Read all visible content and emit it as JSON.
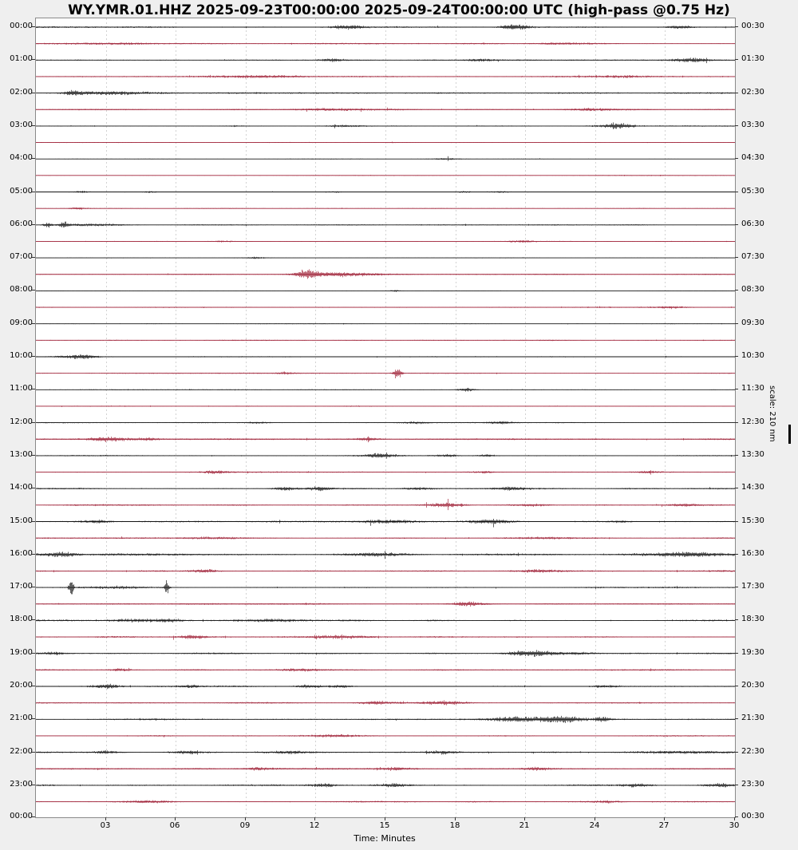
{
  "title": "WY.YMR.01.HHZ 2025-09-23T00:00:00 2025-09-24T00:00:00 UTC (high-pass @0.75 Hz)",
  "xlabel": "Time: Minutes",
  "scale_label": "scale: 210 nm",
  "colors": {
    "trace_black": "#141414",
    "trace_red": "#9f2238",
    "background": "#efefef",
    "plot_background": "#ffffff",
    "grid": "#d2d2d2",
    "frame": "#8a8a8a"
  },
  "x_ticks": [
    "03",
    "06",
    "09",
    "12",
    "15",
    "18",
    "21",
    "24",
    "27",
    "30"
  ],
  "left_labels": [
    "00:00",
    "01:00",
    "02:00",
    "03:00",
    "04:00",
    "05:00",
    "06:00",
    "07:00",
    "08:00",
    "09:00",
    "10:00",
    "11:00",
    "12:00",
    "13:00",
    "14:00",
    "15:00",
    "16:00",
    "17:00",
    "18:00",
    "19:00",
    "20:00",
    "21:00",
    "22:00",
    "23:00",
    "00:00"
  ],
  "right_labels": [
    "00:30",
    "01:30",
    "02:30",
    "03:30",
    "04:30",
    "05:30",
    "06:30",
    "07:30",
    "08:30",
    "09:30",
    "10:30",
    "11:30",
    "12:30",
    "13:30",
    "14:30",
    "15:30",
    "16:30",
    "17:30",
    "18:30",
    "19:30",
    "20:30",
    "21:30",
    "22:30",
    "23:30",
    "00:30"
  ],
  "chart_data": {
    "type": "line",
    "subtype": "helicorder-dayplot",
    "station": "WY.YMR.01.HHZ",
    "start": "2025-09-23T00:00:00",
    "end": "2025-09-24T00:00:00",
    "filter": "high-pass @0.75 Hz",
    "scale": "210 nm",
    "minutes_per_line": 30,
    "lines": 48,
    "xlim": [
      0,
      30
    ],
    "x_tick_minutes": [
      3,
      6,
      9,
      12,
      15,
      18,
      21,
      24,
      27,
      30
    ],
    "grid": "vertical dashed every 3 minutes",
    "line_color_alternation": [
      "black",
      "red"
    ],
    "events_format": "[minute, half_amplitude_px, sigma_minutes]",
    "rows": [
      {
        "start": "00:00",
        "color": "black",
        "noise": 1.1,
        "events": [
          [
            13.3,
            2.2,
            0.5
          ],
          [
            20.3,
            2.2,
            0.3
          ],
          [
            20.8,
            2.2,
            0.3
          ],
          [
            27.6,
            2.0,
            0.4
          ]
        ]
      },
      {
        "start": "00:30",
        "color": "red",
        "noise": 0.9,
        "events": [
          [
            3.5,
            1.4,
            1.2
          ],
          [
            22.6,
            1.2,
            0.8
          ]
        ]
      },
      {
        "start": "01:00",
        "color": "black",
        "noise": 0.8,
        "events": [
          [
            12.7,
            1.8,
            0.35
          ],
          [
            19.0,
            1.8,
            0.4
          ],
          [
            28.1,
            2.6,
            0.6
          ]
        ]
      },
      {
        "start": "01:30",
        "color": "red",
        "noise": 0.9,
        "events": [
          [
            9.8,
            1.3,
            1.5
          ],
          [
            24.8,
            1.4,
            1.2
          ]
        ]
      },
      {
        "start": "02:00",
        "color": "black",
        "noise": 1.1,
        "events": [
          [
            1.6,
            2.4,
            0.3
          ],
          [
            3.2,
            1.6,
            1.2
          ]
        ]
      },
      {
        "start": "02:30",
        "color": "red",
        "noise": 0.9,
        "events": [
          [
            12.8,
            1.2,
            1.5
          ],
          [
            23.8,
            1.3,
            0.8
          ]
        ]
      },
      {
        "start": "03:00",
        "color": "black",
        "noise": 0.8,
        "events": [
          [
            13.3,
            1.4,
            0.6
          ],
          [
            25.0,
            3.4,
            0.5
          ]
        ]
      },
      {
        "start": "03:30",
        "color": "red",
        "noise": 0.6,
        "events": []
      },
      {
        "start": "04:00",
        "color": "black",
        "noise": 0.5,
        "events": [
          [
            17.6,
            0.9,
            0.4
          ]
        ]
      },
      {
        "start": "04:30",
        "color": "red",
        "noise": 0.6,
        "events": []
      },
      {
        "start": "05:00",
        "color": "black",
        "noise": 0.5,
        "events": [
          [
            1.9,
            1.1,
            0.25
          ],
          [
            4.9,
            1.1,
            0.25
          ],
          [
            12.8,
            0.9,
            0.3
          ],
          [
            18.4,
            1.1,
            0.3
          ],
          [
            19.8,
            1.0,
            0.3
          ]
        ]
      },
      {
        "start": "05:30",
        "color": "red",
        "noise": 0.6,
        "events": [
          [
            1.8,
            1.4,
            0.25
          ]
        ]
      },
      {
        "start": "06:00",
        "color": "black",
        "noise": 0.7,
        "events": [
          [
            0.5,
            3.2,
            0.12
          ],
          [
            1.2,
            3.4,
            0.15
          ],
          [
            2.3,
            1.4,
            1.0
          ]
        ]
      },
      {
        "start": "06:30",
        "color": "red",
        "noise": 0.7,
        "events": [
          [
            8.0,
            1.2,
            0.35
          ],
          [
            20.8,
            1.4,
            0.35
          ]
        ]
      },
      {
        "start": "07:00",
        "color": "black",
        "noise": 0.5,
        "events": [
          [
            9.4,
            1.1,
            0.3
          ]
        ]
      },
      {
        "start": "07:30",
        "color": "red",
        "noise": 0.8,
        "events": [
          [
            11.6,
            5.5,
            0.3
          ],
          [
            12.4,
            2.4,
            0.9
          ],
          [
            13.8,
            1.6,
            0.9
          ]
        ]
      },
      {
        "start": "08:00",
        "color": "black",
        "noise": 0.5,
        "events": [
          [
            15.4,
            1.4,
            0.15
          ]
        ]
      },
      {
        "start": "08:30",
        "color": "red",
        "noise": 0.8,
        "events": [
          [
            27.2,
            1.4,
            0.5
          ]
        ]
      },
      {
        "start": "09:00",
        "color": "black",
        "noise": 0.5,
        "events": []
      },
      {
        "start": "09:30",
        "color": "red",
        "noise": 0.7,
        "events": []
      },
      {
        "start": "10:00",
        "color": "black",
        "noise": 0.7,
        "events": [
          [
            1.3,
            1.4,
            0.5
          ],
          [
            2.1,
            2.6,
            0.4
          ]
        ]
      },
      {
        "start": "10:30",
        "color": "red",
        "noise": 0.7,
        "events": [
          [
            10.7,
            1.4,
            0.25
          ],
          [
            15.5,
            7.5,
            0.12
          ]
        ]
      },
      {
        "start": "11:00",
        "color": "black",
        "noise": 0.6,
        "events": [
          [
            18.5,
            2.0,
            0.3
          ]
        ]
      },
      {
        "start": "11:30",
        "color": "red",
        "noise": 0.7,
        "events": []
      },
      {
        "start": "12:00",
        "color": "black",
        "noise": 0.8,
        "events": [
          [
            9.5,
            1.2,
            0.4
          ],
          [
            16.3,
            1.2,
            0.4
          ],
          [
            20.0,
            1.9,
            0.45
          ]
        ]
      },
      {
        "start": "12:30",
        "color": "red",
        "noise": 1.0,
        "events": [
          [
            3.1,
            2.6,
            0.6
          ],
          [
            4.8,
            1.7,
            0.3
          ],
          [
            14.2,
            1.9,
            0.35
          ]
        ]
      },
      {
        "start": "13:00",
        "color": "black",
        "noise": 0.8,
        "events": [
          [
            14.8,
            3.0,
            0.5
          ],
          [
            17.6,
            1.5,
            0.35
          ],
          [
            19.3,
            1.5,
            0.35
          ]
        ]
      },
      {
        "start": "13:30",
        "color": "red",
        "noise": 0.9,
        "events": [
          [
            7.7,
            1.9,
            0.35
          ],
          [
            19.2,
            1.4,
            0.45
          ],
          [
            26.2,
            1.4,
            0.45
          ]
        ]
      },
      {
        "start": "14:00",
        "color": "black",
        "noise": 1.0,
        "events": [
          [
            10.7,
            2.3,
            0.4
          ],
          [
            12.2,
            2.3,
            0.35
          ],
          [
            16.4,
            1.7,
            0.45
          ],
          [
            20.4,
            2.1,
            0.5
          ]
        ]
      },
      {
        "start": "14:30",
        "color": "red",
        "noise": 1.0,
        "events": [
          [
            17.6,
            2.6,
            0.5
          ],
          [
            21.4,
            1.4,
            0.45
          ],
          [
            27.8,
            1.9,
            0.45
          ]
        ]
      },
      {
        "start": "15:00",
        "color": "black",
        "noise": 1.0,
        "events": [
          [
            2.6,
            1.9,
            0.45
          ],
          [
            15.1,
            1.9,
            1.0
          ],
          [
            19.5,
            2.6,
            0.6
          ],
          [
            25.1,
            1.4,
            0.35
          ]
        ]
      },
      {
        "start": "15:30",
        "color": "red",
        "noise": 1.0,
        "events": [
          [
            7.4,
            1.2,
            0.9
          ],
          [
            22.1,
            1.2,
            0.9
          ]
        ]
      },
      {
        "start": "16:00",
        "color": "black",
        "noise": 1.5,
        "events": [
          [
            1.1,
            2.6,
            0.45
          ],
          [
            14.6,
            1.7,
            0.9
          ],
          [
            27.9,
            2.6,
            1.0
          ]
        ]
      },
      {
        "start": "16:30",
        "color": "red",
        "noise": 1.2,
        "events": [
          [
            7.2,
            2.4,
            0.45
          ],
          [
            21.4,
            1.7,
            0.7
          ]
        ]
      },
      {
        "start": "17:00",
        "color": "black",
        "noise": 1.0,
        "events": [
          [
            1.5,
            13,
            0.07
          ],
          [
            3.4,
            1.4,
            0.9
          ],
          [
            5.6,
            9.5,
            0.07
          ]
        ]
      },
      {
        "start": "17:30",
        "color": "red",
        "noise": 1.0,
        "events": [
          [
            18.5,
            2.4,
            0.45
          ]
        ]
      },
      {
        "start": "18:00",
        "color": "black",
        "noise": 1.2,
        "events": [
          [
            4.0,
            1.7,
            0.7
          ],
          [
            5.7,
            1.7,
            0.45
          ],
          [
            9.9,
            1.2,
            1.5
          ]
        ]
      },
      {
        "start": "18:30",
        "color": "red",
        "noise": 1.1,
        "events": [
          [
            6.7,
            1.9,
            0.45
          ],
          [
            13.1,
            1.4,
            0.9
          ]
        ]
      },
      {
        "start": "19:00",
        "color": "black",
        "noise": 1.0,
        "events": [
          [
            0.8,
            1.7,
            0.35
          ],
          [
            20.8,
            2.6,
            0.45
          ],
          [
            21.6,
            2.9,
            0.45
          ],
          [
            23.2,
            1.4,
            0.7
          ]
        ]
      },
      {
        "start": "19:30",
        "color": "red",
        "noise": 1.0,
        "events": [
          [
            3.6,
            1.9,
            0.35
          ],
          [
            11.4,
            1.4,
            0.7
          ]
        ]
      },
      {
        "start": "20:00",
        "color": "black",
        "noise": 1.1,
        "events": [
          [
            3.0,
            2.9,
            0.45
          ],
          [
            6.6,
            1.4,
            0.35
          ],
          [
            11.7,
            1.7,
            0.35
          ],
          [
            13.1,
            1.7,
            0.35
          ],
          [
            24.4,
            1.7,
            0.45
          ]
        ]
      },
      {
        "start": "20:30",
        "color": "red",
        "noise": 1.0,
        "events": [
          [
            14.5,
            2.1,
            0.45
          ],
          [
            17.6,
            2.4,
            0.7
          ]
        ]
      },
      {
        "start": "21:00",
        "color": "black",
        "noise": 1.1,
        "events": [
          [
            20.2,
            1.9,
            0.9
          ],
          [
            21.1,
            2.1,
            0.7
          ],
          [
            22.6,
            4.2,
            0.6
          ],
          [
            24.3,
            2.9,
            0.25
          ]
        ]
      },
      {
        "start": "21:30",
        "color": "red",
        "noise": 1.0,
        "events": [
          [
            13.0,
            1.4,
            0.9
          ]
        ]
      },
      {
        "start": "22:00",
        "color": "black",
        "noise": 1.2,
        "events": [
          [
            3.0,
            1.7,
            0.5
          ],
          [
            6.4,
            1.7,
            0.45
          ],
          [
            11.0,
            1.4,
            0.5
          ],
          [
            17.4,
            1.9,
            0.45
          ],
          [
            27.4,
            1.7,
            1.2
          ]
        ]
      },
      {
        "start": "22:30",
        "color": "red",
        "noise": 1.1,
        "events": [
          [
            9.5,
            1.4,
            0.5
          ],
          [
            15.5,
            1.7,
            0.45
          ],
          [
            21.5,
            1.7,
            0.45
          ]
        ]
      },
      {
        "start": "23:00",
        "color": "black",
        "noise": 1.2,
        "events": [
          [
            12.3,
            2.1,
            0.45
          ],
          [
            15.3,
            1.9,
            0.45
          ],
          [
            25.8,
            2.4,
            0.45
          ],
          [
            29.3,
            1.9,
            0.5
          ]
        ]
      },
      {
        "start": "23:30",
        "color": "red",
        "noise": 1.0,
        "events": [
          [
            4.8,
            1.7,
            0.7
          ],
          [
            24.5,
            1.4,
            0.45
          ]
        ]
      }
    ]
  }
}
